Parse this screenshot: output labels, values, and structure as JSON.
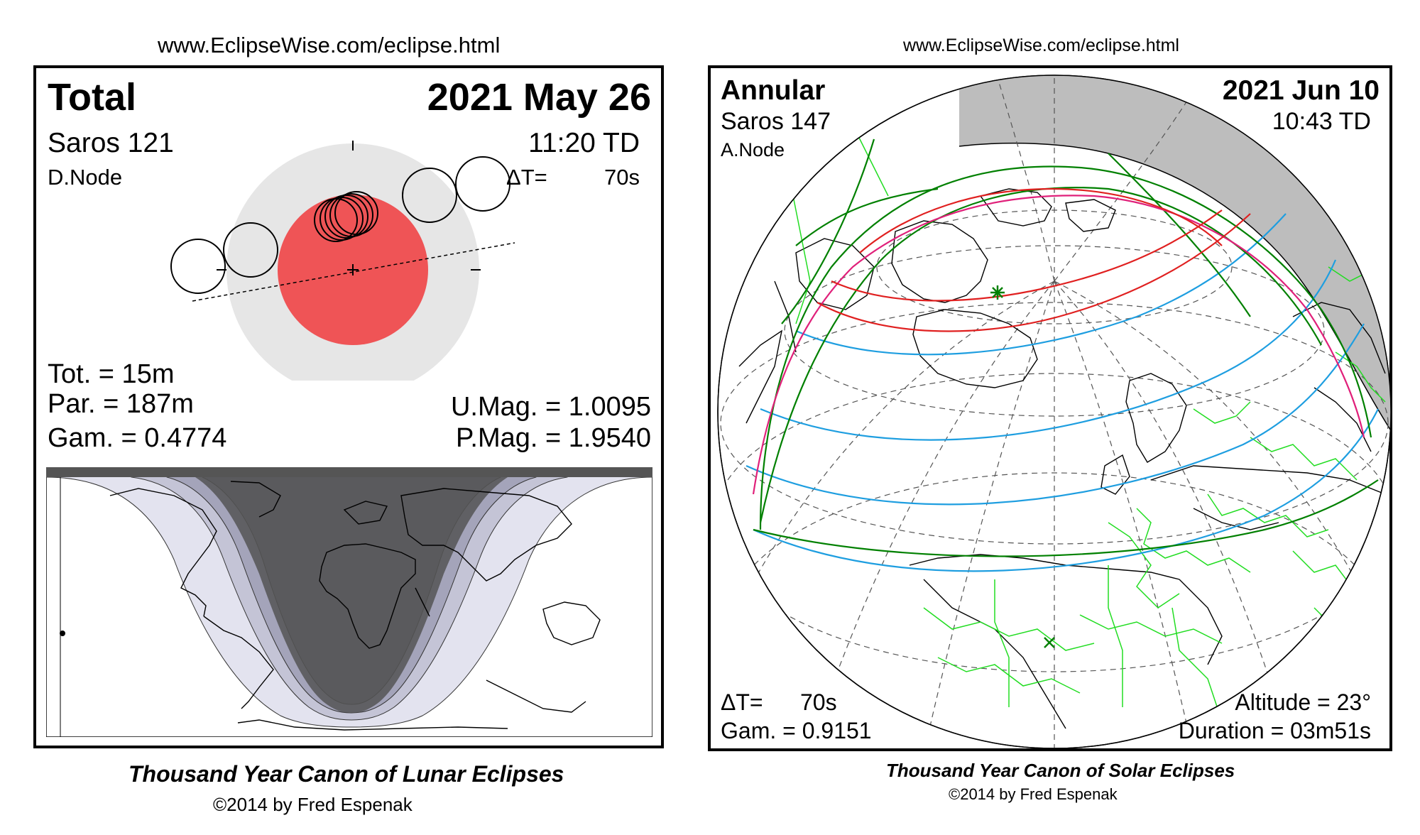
{
  "lunar": {
    "url": "www.EclipseWise.com/eclipse.html",
    "type": "Total",
    "date": "2021 May 26",
    "saros": "Saros 121",
    "time": "11:20 TD",
    "node": "D.Node",
    "delta_t_label": "ΔT=",
    "delta_t_value": "70s",
    "tot": "Tot. =  15m",
    "par": "Par. = 187m",
    "gam": "Gam. = 0.4774",
    "umag": "U.Mag. = 1.0095",
    "pmag": "P.Mag. = 1.9540",
    "credit_title": "Thousand Year Canon of Lunar Eclipses",
    "credit_copy": "©2014 by Fred Espenak",
    "colors": {
      "umbra": "#ef5456",
      "penumbra": "#e6e6e6",
      "night": "#555555"
    }
  },
  "solar": {
    "url": "www.EclipseWise.com/eclipse.html",
    "type": "Annular",
    "date": "2021 Jun 10",
    "saros": "Saros 147",
    "time": "10:43 TD",
    "node": "A.Node",
    "delta_t_label": "ΔT=",
    "delta_t_value": "70s",
    "gam": "Gam. = 0.9151",
    "altitude": "Altitude = 23°",
    "duration": "Duration = 03m51s",
    "credit_title": "Thousand Year Canon of Solar Eclipses",
    "credit_copy": "©2014 by Fred Espenak",
    "colors": {
      "path": "#e02020",
      "penumbral": "#008000",
      "rise_set": "#e0207a",
      "contours": "#1e9ee0",
      "borders": "#22dd22",
      "night": "#bdbdbd"
    }
  }
}
